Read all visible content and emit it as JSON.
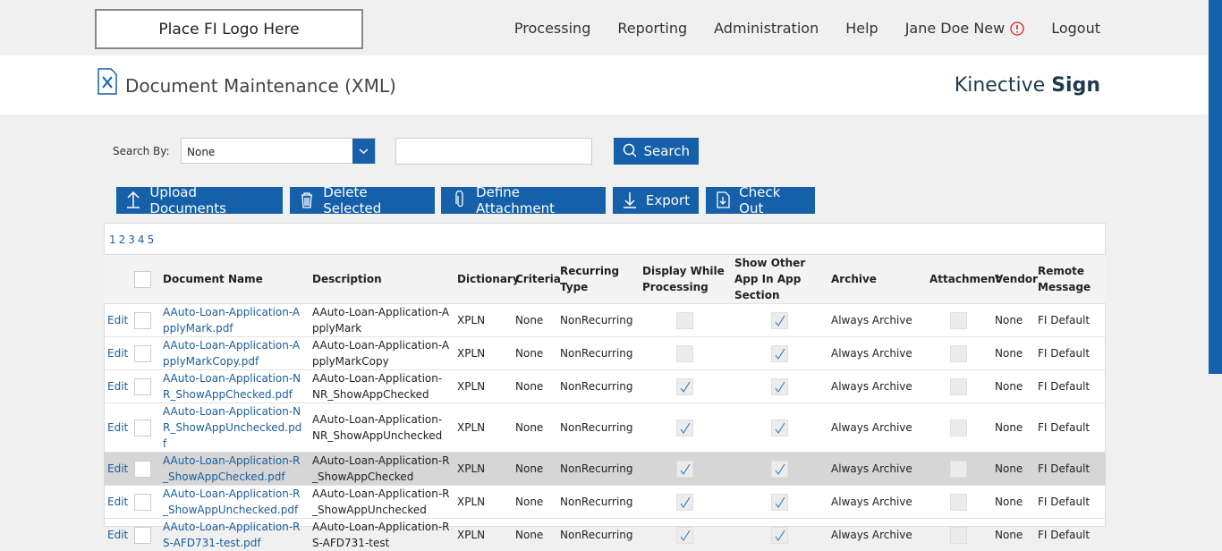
{
  "header": {
    "logo": "Place FI Logo Here",
    "nav": [
      "Processing",
      "Reporting",
      "Administration",
      "Help",
      "Jane Doe New",
      "Logout"
    ]
  },
  "page": {
    "title": "Document Maintenance (XML)",
    "brand": "Kinective",
    "brand_bold": "Sign"
  },
  "search": {
    "label": "Search By:",
    "select": "None",
    "button": "Search"
  },
  "actions": [
    "Upload Documents",
    "Delete Selected",
    "Define Attachment",
    "Export",
    "Check Out"
  ],
  "pages": [
    "1",
    "2",
    "3",
    "4",
    "5"
  ],
  "table": {
    "headers": [
      "Document Name",
      "Description",
      "Dictionary",
      "Criteria",
      "Recurring Type",
      "Display While Processing",
      "Show Other App In App Section",
      "Archive",
      "Attachment",
      "Vendor",
      "Remote Message"
    ],
    "rows": [
      {
        "edit": "Edit",
        "name": "AAuto-Loan-Application-ApplyMark.pdf",
        "description": "AAuto-Loan-Application-ApplyMark",
        "dictionary": "XPLN",
        "criteria": "None",
        "recurring": "NonRecurring",
        "display": false,
        "show": true,
        "archive": "Always Archive",
        "attachment": false,
        "vendor": "None",
        "remote": "FI Default"
      },
      {
        "edit": "Edit",
        "name": "AAuto-Loan-Application-ApplyMarkCopy.pdf",
        "description": "AAuto-Loan-Application-ApplyMarkCopy",
        "dictionary": "XPLN",
        "criteria": "None",
        "recurring": "NonRecurring",
        "display": false,
        "show": true,
        "archive": "Always Archive",
        "attachment": false,
        "vendor": "None",
        "remote": "FI Default"
      },
      {
        "edit": "Edit",
        "name": "AAuto-Loan-Application-NR_ShowAppChecked.pdf",
        "description": "AAuto-Loan-Application-NR_ShowAppChecked",
        "dictionary": "XPLN",
        "criteria": "None",
        "recurring": "NonRecurring",
        "display": true,
        "show": true,
        "archive": "Always Archive",
        "attachment": false,
        "vendor": "None",
        "remote": "FI Default"
      },
      {
        "edit": "Edit",
        "name": "AAuto-Loan-Application-NR_ShowAppUnchecked.pdf",
        "description": "AAuto-Loan-Application-NR_ShowAppUnchecked",
        "dictionary": "XPLN",
        "criteria": "None",
        "recurring": "NonRecurring",
        "display": true,
        "show": true,
        "archive": "Always Archive",
        "attachment": false,
        "vendor": "None",
        "remote": "FI Default"
      },
      {
        "edit": "Edit",
        "name": "AAuto-Loan-Application-R_ShowAppChecked.pdf",
        "description": "AAuto-Loan-Application-R_ShowAppChecked",
        "dictionary": "XPLN",
        "criteria": "None",
        "recurring": "NonRecurring",
        "display": true,
        "show": true,
        "archive": "Always Archive",
        "attachment": false,
        "vendor": "None",
        "remote": "FI Default"
      },
      {
        "edit": "Edit",
        "name": "AAuto-Loan-Application-R_ShowAppUnchecked.pdf",
        "description": "AAuto-Loan-Application-R_ShowAppUnchecked",
        "dictionary": "XPLN",
        "criteria": "None",
        "recurring": "NonRecurring",
        "display": true,
        "show": true,
        "archive": "Always Archive",
        "attachment": false,
        "vendor": "None",
        "remote": "FI Default"
      },
      {
        "edit": "Edit",
        "name": "AAuto-Loan-Application-RS-AFD731-test.pdf",
        "description": "AAuto-Loan-Application-RS-AFD731-test",
        "dictionary": "XPLN",
        "criteria": "None",
        "recurring": "NonRecurring",
        "display": true,
        "show": true,
        "archive": "Always Archive",
        "attachment": false,
        "vendor": "None",
        "remote": "FI Default"
      }
    ]
  }
}
